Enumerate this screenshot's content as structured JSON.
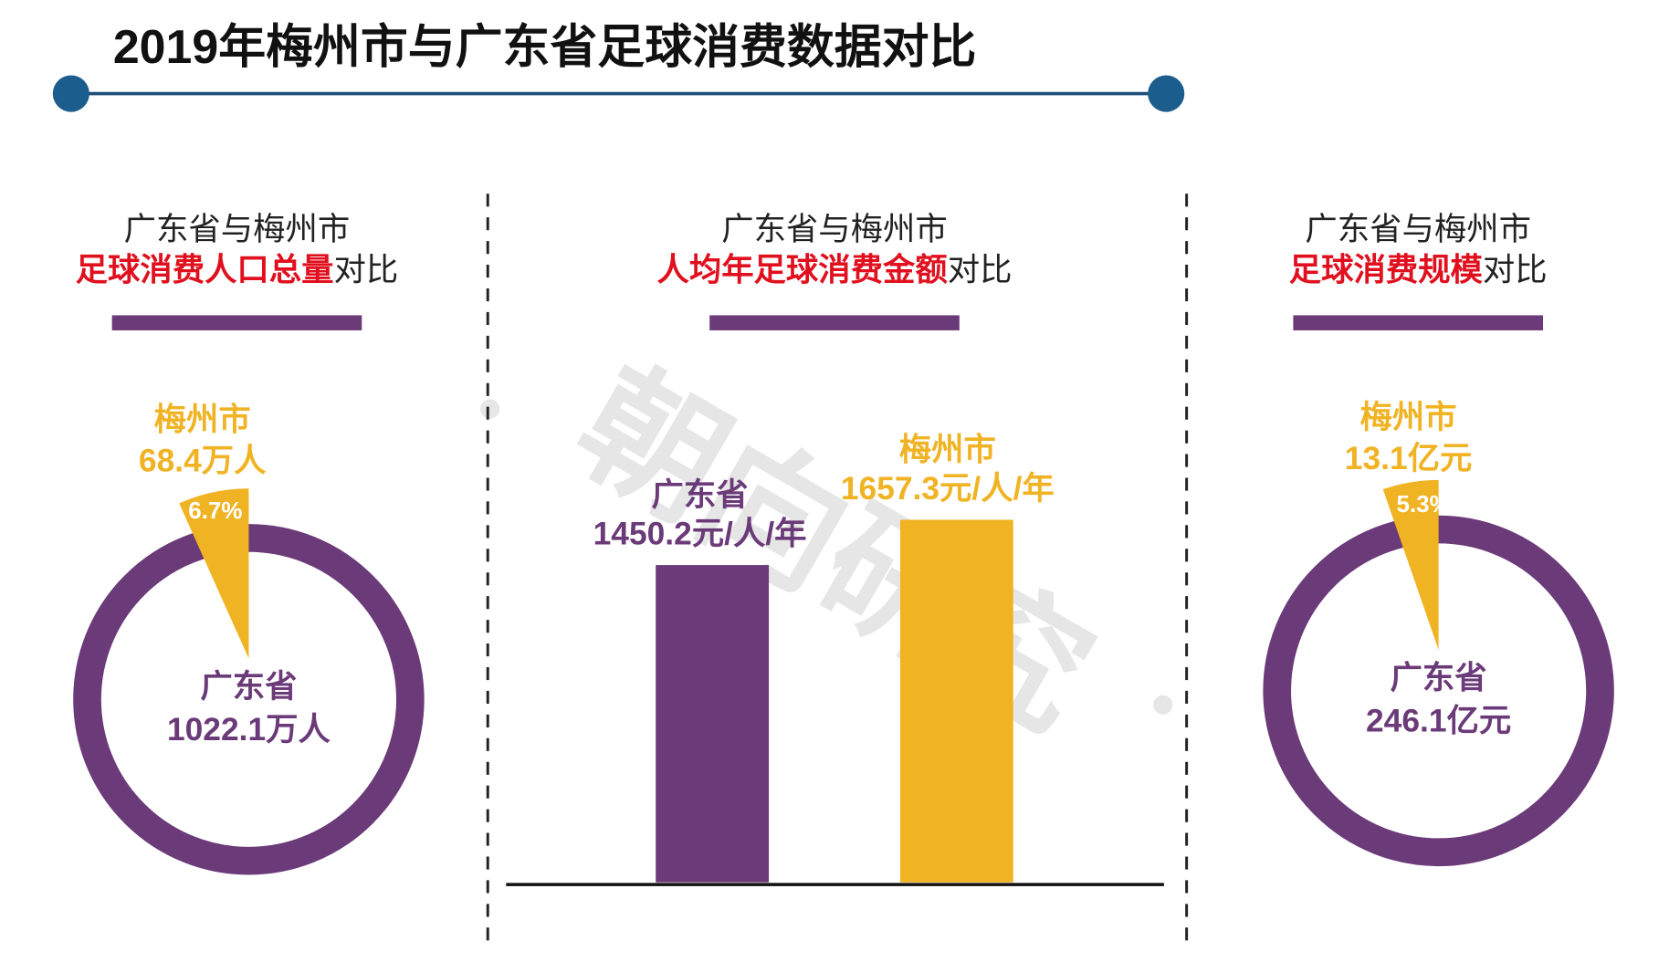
{
  "title": "2019年梅州市与广东省足球消费数据对比",
  "watermark": "朝向研究",
  "chart_data": [
    {
      "type": "ring",
      "title_line1": "广东省与梅州市",
      "title_highlight": "足球消费人口总量",
      "title_suffix": "对比",
      "categories": [
        "梅州市",
        "广东省"
      ],
      "values": [
        68.4,
        1022.1
      ],
      "value_labels": [
        "68.4万人",
        "1022.1万人"
      ],
      "share_value": 6.7,
      "share_label": "6.7%",
      "colors": [
        "#f0b323",
        "#6b3a78"
      ]
    },
    {
      "type": "bar",
      "title_line1": "广东省与梅州市",
      "title_highlight": "人均年足球消费金额",
      "title_suffix": "对比",
      "categories": [
        "广东省",
        "梅州市"
      ],
      "values": [
        1450.2,
        1657.3
      ],
      "value_labels": [
        "1450.2元/人/年",
        "1657.3元/人/年"
      ],
      "colors": [
        "#6b3a78",
        "#f0b323"
      ]
    },
    {
      "type": "ring",
      "title_line1": "广东省与梅州市",
      "title_highlight": "足球消费规模",
      "title_suffix": "对比",
      "categories": [
        "梅州市",
        "广东省"
      ],
      "values": [
        13.1,
        246.1
      ],
      "value_labels": [
        "13.1亿元",
        "246.1亿元"
      ],
      "share_value": 5.3,
      "share_label": "5.3%",
      "colors": [
        "#f0b323",
        "#6b3a78"
      ]
    }
  ]
}
